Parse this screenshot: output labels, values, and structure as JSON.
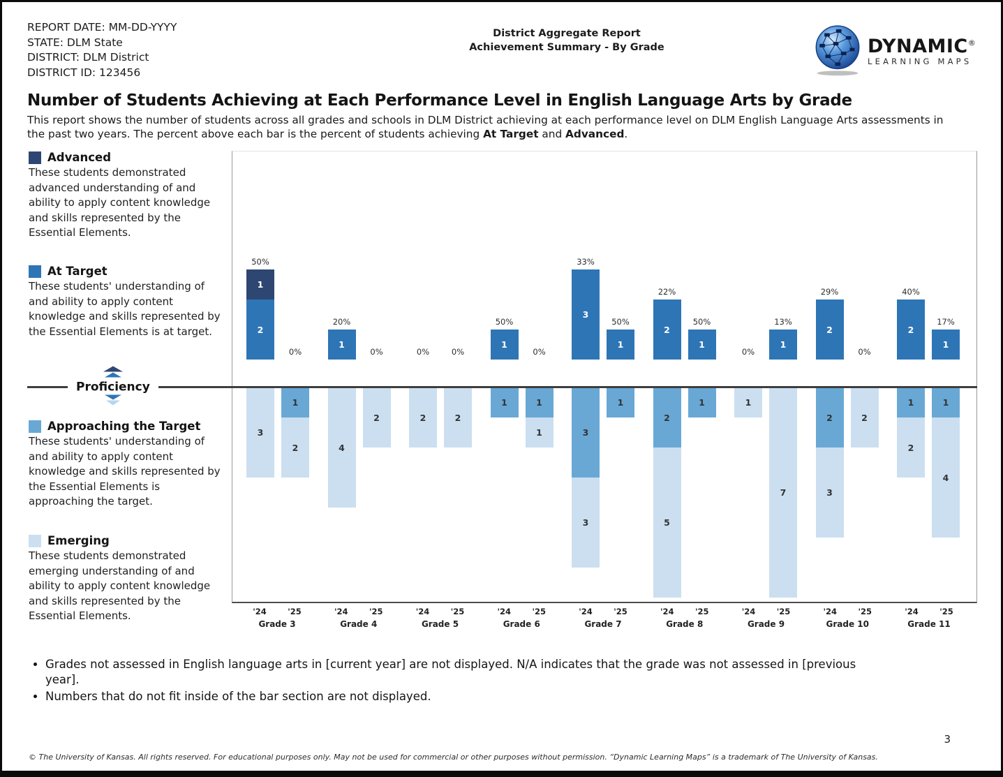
{
  "header": {
    "meta_lines": [
      "REPORT DATE: MM-DD-YYYY",
      "STATE: DLM State",
      "DISTRICT: DLM District",
      "DISTRICT ID: 123456"
    ],
    "center_line1": "District Aggregate Report",
    "center_line2": "Achievement Summary - By Grade",
    "logo": {
      "name": "DYNAMIC",
      "registered": "®",
      "subtitle": "LEARNING MAPS"
    }
  },
  "title": "Number of Students Achieving at Each Performance Level in English Language Arts by Grade",
  "description": {
    "part1": "This report shows the number of students across all grades and schools in DLM District achieving at each performance level on DLM English Language Arts assessments in the past two years. The percent above each bar is the percent of students achieving ",
    "bold1": "At Target",
    "part2": " and ",
    "bold2": "Advanced",
    "part3": "."
  },
  "legend": {
    "proficiency_label": "Proficiency",
    "advanced": {
      "label": "Advanced",
      "description": "These students demonstrated advanced understanding of and ability to apply content knowledge and skills represented by the Essential Elements."
    },
    "at_target": {
      "label": "At Target",
      "description": "These students' understanding of and ability to apply content knowledge and skills represented by the Essential Elements is at target."
    },
    "approaching": {
      "label": "Approaching the Target",
      "description": "These students' understanding of and ability to apply content knowledge and skills represented by the Essential Elements is approaching the target."
    },
    "emerging": {
      "label": "Emerging",
      "description": "These students demonstrated emerging understanding of and ability to apply content knowledge and skills represented by the Essential Elements."
    }
  },
  "chart_data": {
    "type": "bar",
    "stacked": true,
    "orientation": "diverging-vertical",
    "title": "Number of Students Achieving at Each Performance Level in English Language Arts by Grade",
    "proficiency_line_label": "Proficiency",
    "years": [
      "'24",
      "'25"
    ],
    "categories": [
      "Grade 3",
      "Grade 4",
      "Grade 5",
      "Grade 6",
      "Grade 7",
      "Grade 8",
      "Grade 9",
      "Grade 10",
      "Grade 11"
    ],
    "levels": {
      "advanced": {
        "label": "Advanced",
        "color": "#2e4672",
        "side": "above"
      },
      "at_target": {
        "label": "At Target",
        "color": "#2e75b6",
        "side": "above"
      },
      "approaching": {
        "label": "Approaching the Target",
        "color": "#69a8d5",
        "side": "below"
      },
      "emerging": {
        "label": "Emerging",
        "color": "#cbdff0",
        "side": "below"
      }
    },
    "line_color": "#3e3e3e",
    "groups": [
      {
        "grade": "Grade 3",
        "bars": [
          {
            "year": "'24",
            "pct": "50%",
            "above": [
              {
                "level": "advanced",
                "value": 1
              },
              {
                "level": "at_target",
                "value": 2
              }
            ],
            "below": [
              {
                "level": "emerging",
                "value": 3
              }
            ]
          },
          {
            "year": "'25",
            "pct": "0%",
            "above": [],
            "below": [
              {
                "level": "approaching",
                "value": 1
              },
              {
                "level": "emerging",
                "value": 2
              }
            ]
          }
        ]
      },
      {
        "grade": "Grade 4",
        "bars": [
          {
            "year": "'24",
            "pct": "20%",
            "above": [
              {
                "level": "at_target",
                "value": 1
              }
            ],
            "below": [
              {
                "level": "emerging",
                "value": 4
              }
            ]
          },
          {
            "year": "'25",
            "pct": "0%",
            "above": [],
            "below": [
              {
                "level": "emerging",
                "value": 2
              }
            ]
          }
        ]
      },
      {
        "grade": "Grade 5",
        "bars": [
          {
            "year": "'24",
            "pct": "0%",
            "above": [],
            "below": [
              {
                "level": "emerging",
                "value": 2
              }
            ]
          },
          {
            "year": "'25",
            "pct": "0%",
            "above": [],
            "below": [
              {
                "level": "emerging",
                "value": 2
              }
            ]
          }
        ]
      },
      {
        "grade": "Grade 6",
        "bars": [
          {
            "year": "'24",
            "pct": "50%",
            "above": [
              {
                "level": "at_target",
                "value": 1
              }
            ],
            "below": [
              {
                "level": "approaching",
                "value": 1
              }
            ]
          },
          {
            "year": "'25",
            "pct": "0%",
            "above": [],
            "below": [
              {
                "level": "approaching",
                "value": 1
              },
              {
                "level": "emerging",
                "value": 1
              }
            ]
          }
        ]
      },
      {
        "grade": "Grade 7",
        "bars": [
          {
            "year": "'24",
            "pct": "33%",
            "above": [
              {
                "level": "at_target",
                "value": 3
              }
            ],
            "below": [
              {
                "level": "approaching",
                "value": 3
              },
              {
                "level": "emerging",
                "value": 3
              }
            ]
          },
          {
            "year": "'25",
            "pct": "50%",
            "above": [
              {
                "level": "at_target",
                "value": 1
              }
            ],
            "below": [
              {
                "level": "approaching",
                "value": 1
              }
            ]
          }
        ]
      },
      {
        "grade": "Grade 8",
        "bars": [
          {
            "year": "'24",
            "pct": "22%",
            "above": [
              {
                "level": "at_target",
                "value": 2
              }
            ],
            "below": [
              {
                "level": "approaching",
                "value": 2
              },
              {
                "level": "emerging",
                "value": 5
              }
            ]
          },
          {
            "year": "'25",
            "pct": "50%",
            "above": [
              {
                "level": "at_target",
                "value": 1
              }
            ],
            "below": [
              {
                "level": "approaching",
                "value": 1
              }
            ]
          }
        ]
      },
      {
        "grade": "Grade 9",
        "bars": [
          {
            "year": "'24",
            "pct": "0%",
            "above": [],
            "below": [
              {
                "level": "emerging",
                "value": 1
              }
            ]
          },
          {
            "year": "'25",
            "pct": "13%",
            "above": [
              {
                "level": "at_target",
                "value": 1
              }
            ],
            "below": [
              {
                "level": "emerging",
                "value": 7
              }
            ]
          }
        ]
      },
      {
        "grade": "Grade 10",
        "bars": [
          {
            "year": "'24",
            "pct": "29%",
            "above": [
              {
                "level": "at_target",
                "value": 2
              }
            ],
            "below": [
              {
                "level": "approaching",
                "value": 2
              },
              {
                "level": "emerging",
                "value": 3
              }
            ]
          },
          {
            "year": "'25",
            "pct": "0%",
            "above": [],
            "below": [
              {
                "level": "emerging",
                "value": 2
              }
            ]
          }
        ]
      },
      {
        "grade": "Grade 11",
        "bars": [
          {
            "year": "'24",
            "pct": "40%",
            "above": [
              {
                "level": "at_target",
                "value": 2
              }
            ],
            "below": [
              {
                "level": "approaching",
                "value": 1
              },
              {
                "level": "emerging",
                "value": 2
              }
            ]
          },
          {
            "year": "'25",
            "pct": "17%",
            "above": [
              {
                "level": "at_target",
                "value": 1
              }
            ],
            "below": [
              {
                "level": "approaching",
                "value": 1
              },
              {
                "level": "emerging",
                "value": 4
              }
            ]
          }
        ]
      }
    ]
  },
  "footnotes": [
    "Grades not assessed in English language arts in [current year] are not displayed. N/A indicates that the grade was not assessed in [previous year].",
    "Numbers that do not fit inside of the bar section are not displayed."
  ],
  "copyright": "© The University of Kansas. All rights reserved. For educational purposes only. May not be used for commercial or other purposes without permission. “Dynamic Learning Maps” is a trademark of The University of Kansas.",
  "page_number": "3"
}
